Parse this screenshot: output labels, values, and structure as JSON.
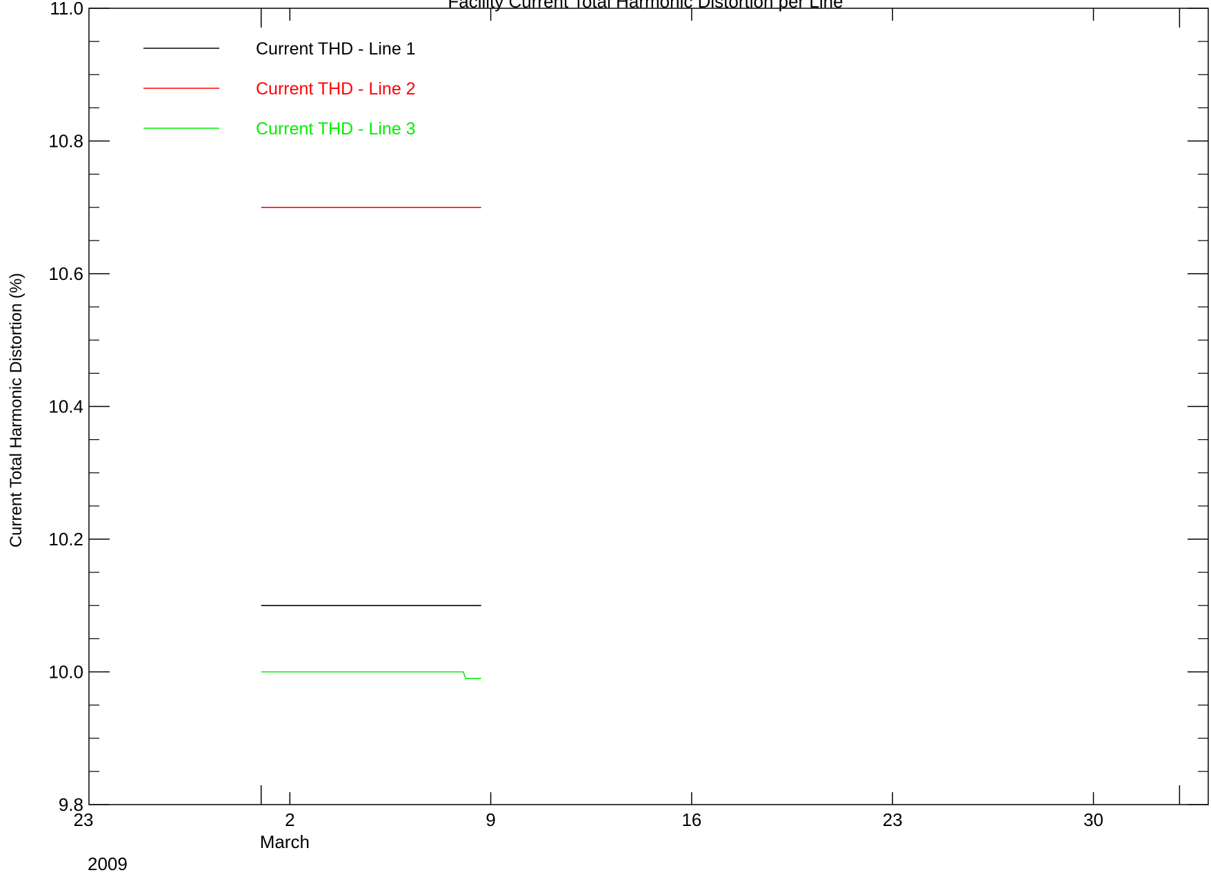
{
  "chart_data": {
    "type": "line",
    "title": "Facility Current Total Harmonic Distortion per Line",
    "xlabel": "",
    "ylabel": "Current Total Harmonic Distortion (%)",
    "xlim": [
      "2009-02-23",
      "2009-04-03"
    ],
    "ylim": [
      9.8,
      11.0
    ],
    "grid": false,
    "legend_position": "top-left",
    "y_ticks": [
      {
        "value": 9.8,
        "label": "9.8"
      },
      {
        "value": 10.0,
        "label": "10.0"
      },
      {
        "value": 10.2,
        "label": "10.2"
      },
      {
        "value": 10.4,
        "label": "10.4"
      },
      {
        "value": 10.6,
        "label": "10.6"
      },
      {
        "value": 10.8,
        "label": "10.8"
      },
      {
        "value": 11.0,
        "label": "11.0"
      }
    ],
    "x_ticks": [
      {
        "value": "2009-02-23",
        "label": "23"
      },
      {
        "value": "2009-03-02",
        "label": "2"
      },
      {
        "value": "2009-03-09",
        "label": "9"
      },
      {
        "value": "2009-03-16",
        "label": "16"
      },
      {
        "value": "2009-03-23",
        "label": "23"
      },
      {
        "value": "2009-03-30",
        "label": "30"
      }
    ],
    "month_marker": {
      "value": "2009-03-01",
      "month_label": "March",
      "year_label": "2009"
    },
    "series": [
      {
        "name": "Current THD - Line 1",
        "color": "#000000",
        "x": [
          "2009-03-01",
          "2009-03-08 16:00"
        ],
        "y": [
          10.1,
          10.1
        ]
      },
      {
        "name": "Current THD - Line 2",
        "color": "#ff0000",
        "x": [
          "2009-03-01",
          "2009-03-08 16:00"
        ],
        "y": [
          10.7,
          10.7
        ]
      },
      {
        "name": "Current THD - Line 3",
        "color": "#00ee00",
        "x": [
          "2009-03-01",
          "2009-03-08 01:00",
          "2009-03-08 03:00",
          "2009-03-08 16:00"
        ],
        "y": [
          10.0,
          10.0,
          9.99,
          9.99
        ]
      }
    ]
  }
}
